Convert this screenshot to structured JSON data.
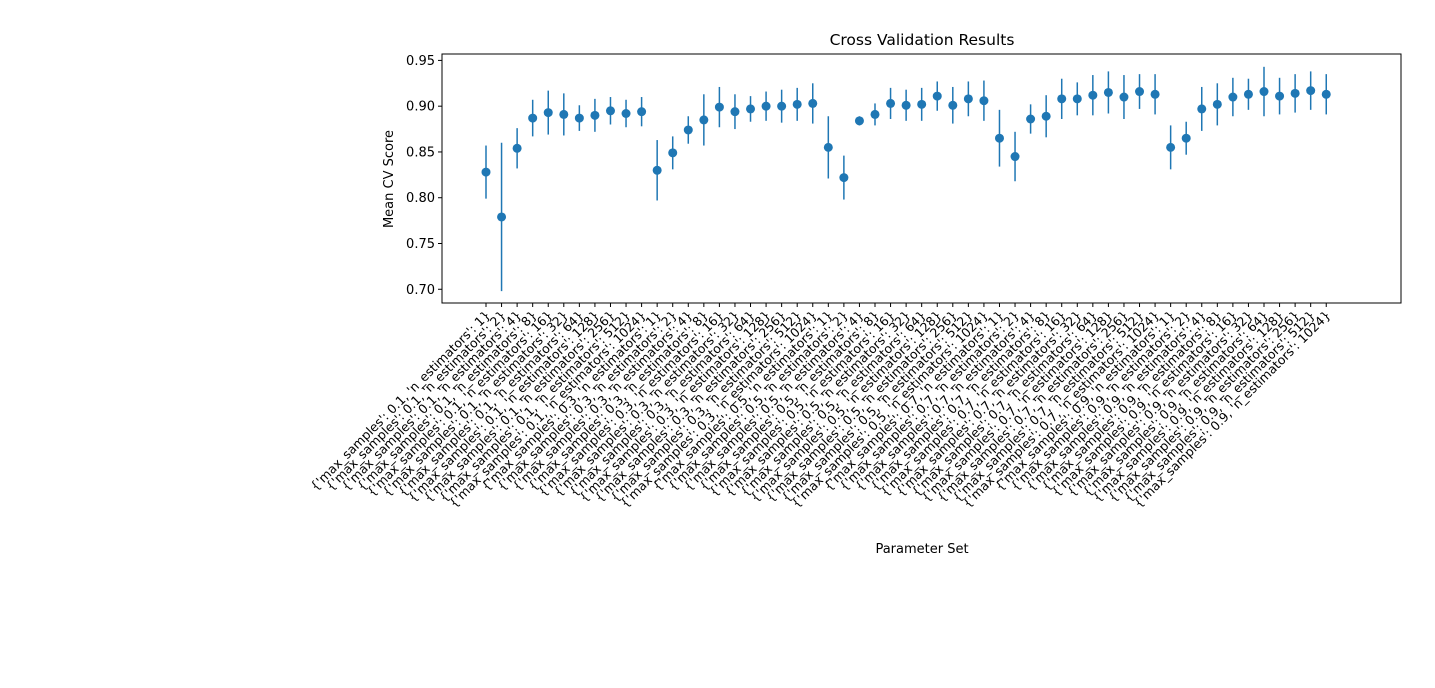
{
  "chart_data": {
    "type": "scatter",
    "title": "Cross Validation Results",
    "xlabel": "Parameter Set",
    "ylabel": "Mean CV Score",
    "ylim": [
      0.685,
      0.957
    ],
    "yticks": [
      0.7,
      0.75,
      0.8,
      0.85,
      0.9,
      0.95
    ],
    "ytick_labels": [
      "0.70",
      "0.75",
      "0.80",
      "0.85",
      "0.90",
      "0.95"
    ],
    "grid": false,
    "error_bars": true,
    "marker_color": "#1f77b4",
    "categories": [
      "{'max_samples': 0.1, 'n_estimators': 1}",
      "{'max_samples': 0.1, 'n_estimators': 2}",
      "{'max_samples': 0.1, 'n_estimators': 4}",
      "{'max_samples': 0.1, 'n_estimators': 8}",
      "{'max_samples': 0.1, 'n_estimators': 16}",
      "{'max_samples': 0.1, 'n_estimators': 32}",
      "{'max_samples': 0.1, 'n_estimators': 64}",
      "{'max_samples': 0.1, 'n_estimators': 128}",
      "{'max_samples': 0.1, 'n_estimators': 256}",
      "{'max_samples': 0.1, 'n_estimators': 512}",
      "{'max_samples': 0.1, 'n_estimators': 1024}",
      "{'max_samples': 0.3, 'n_estimators': 1}",
      "{'max_samples': 0.3, 'n_estimators': 2}",
      "{'max_samples': 0.3, 'n_estimators': 4}",
      "{'max_samples': 0.3, 'n_estimators': 8}",
      "{'max_samples': 0.3, 'n_estimators': 16}",
      "{'max_samples': 0.3, 'n_estimators': 32}",
      "{'max_samples': 0.3, 'n_estimators': 64}",
      "{'max_samples': 0.3, 'n_estimators': 128}",
      "{'max_samples': 0.3, 'n_estimators': 256}",
      "{'max_samples': 0.3, 'n_estimators': 512}",
      "{'max_samples': 0.3, 'n_estimators': 1024}",
      "{'max_samples': 0.5, 'n_estimators': 1}",
      "{'max_samples': 0.5, 'n_estimators': 2}",
      "{'max_samples': 0.5, 'n_estimators': 4}",
      "{'max_samples': 0.5, 'n_estimators': 8}",
      "{'max_samples': 0.5, 'n_estimators': 16}",
      "{'max_samples': 0.5, 'n_estimators': 32}",
      "{'max_samples': 0.5, 'n_estimators': 64}",
      "{'max_samples': 0.5, 'n_estimators': 128}",
      "{'max_samples': 0.5, 'n_estimators': 256}",
      "{'max_samples': 0.5, 'n_estimators': 512}",
      "{'max_samples': 0.5, 'n_estimators': 1024}",
      "{'max_samples': 0.7, 'n_estimators': 1}",
      "{'max_samples': 0.7, 'n_estimators': 2}",
      "{'max_samples': 0.7, 'n_estimators': 4}",
      "{'max_samples': 0.7, 'n_estimators': 8}",
      "{'max_samples': 0.7, 'n_estimators': 16}",
      "{'max_samples': 0.7, 'n_estimators': 32}",
      "{'max_samples': 0.7, 'n_estimators': 64}",
      "{'max_samples': 0.7, 'n_estimators': 128}",
      "{'max_samples': 0.7, 'n_estimators': 256}",
      "{'max_samples': 0.7, 'n_estimators': 512}",
      "{'max_samples': 0.7, 'n_estimators': 1024}",
      "{'max_samples': 0.9, 'n_estimators': 1}",
      "{'max_samples': 0.9, 'n_estimators': 2}",
      "{'max_samples': 0.9, 'n_estimators': 4}",
      "{'max_samples': 0.9, 'n_estimators': 8}",
      "{'max_samples': 0.9, 'n_estimators': 16}",
      "{'max_samples': 0.9, 'n_estimators': 32}",
      "{'max_samples': 0.9, 'n_estimators': 64}",
      "{'max_samples': 0.9, 'n_estimators': 128}",
      "{'max_samples': 0.9, 'n_estimators': 256}",
      "{'max_samples': 0.9, 'n_estimators': 512}",
      "{'max_samples': 0.9, 'n_estimators': 1024}"
    ],
    "values": [
      0.828,
      0.779,
      0.854,
      0.887,
      0.893,
      0.891,
      0.887,
      0.89,
      0.895,
      0.892,
      0.894,
      0.83,
      0.849,
      0.874,
      0.885,
      0.899,
      0.894,
      0.897,
      0.9,
      0.9,
      0.902,
      0.903,
      0.855,
      0.822,
      0.884,
      0.891,
      0.903,
      0.901,
      0.902,
      0.911,
      0.901,
      0.908,
      0.906,
      0.865,
      0.845,
      0.886,
      0.889,
      0.908,
      0.908,
      0.912,
      0.915,
      0.91,
      0.916,
      0.913,
      0.855,
      0.865,
      0.897,
      0.902,
      0.91,
      0.913,
      0.916,
      0.911,
      0.914,
      0.917,
      0.913
    ],
    "errors": [
      0.029,
      0.081,
      0.022,
      0.02,
      0.024,
      0.023,
      0.014,
      0.018,
      0.015,
      0.015,
      0.016,
      0.033,
      0.018,
      0.015,
      0.028,
      0.022,
      0.019,
      0.014,
      0.016,
      0.018,
      0.018,
      0.022,
      0.034,
      0.024,
      0.005,
      0.012,
      0.017,
      0.017,
      0.018,
      0.016,
      0.02,
      0.019,
      0.022,
      0.031,
      0.027,
      0.016,
      0.023,
      0.022,
      0.018,
      0.022,
      0.023,
      0.024,
      0.019,
      0.022,
      0.024,
      0.018,
      0.024,
      0.023,
      0.021,
      0.017,
      0.027,
      0.02,
      0.021,
      0.021,
      0.022
    ]
  }
}
